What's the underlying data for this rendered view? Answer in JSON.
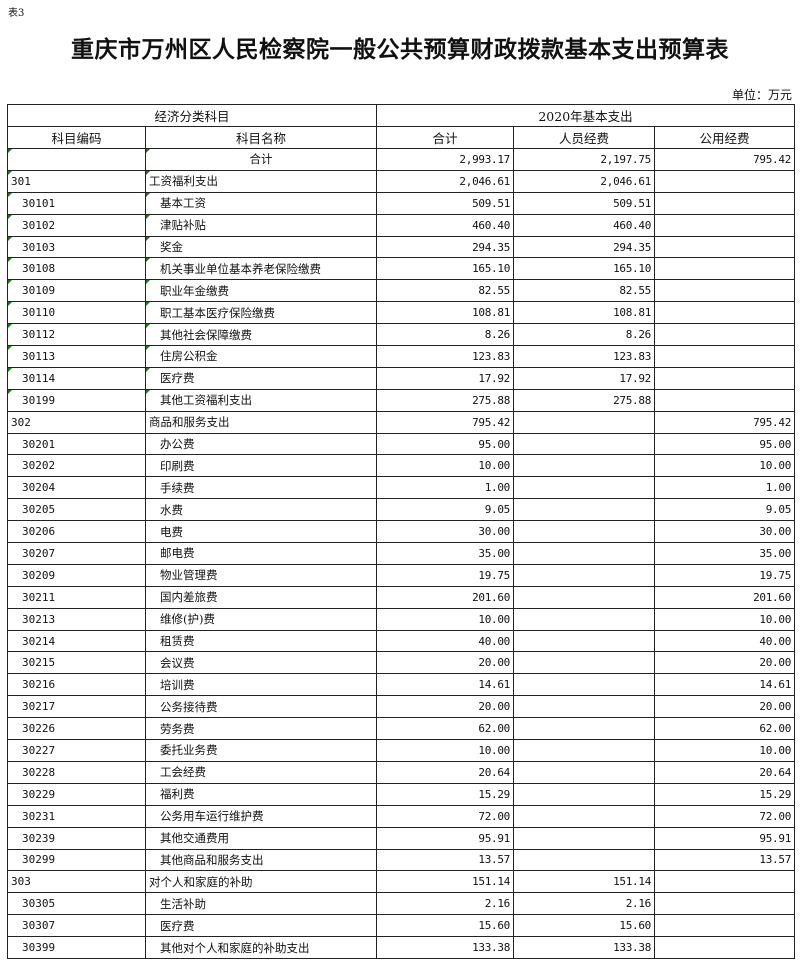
{
  "doc": {
    "tag": "表3",
    "title": "重庆市万州区人民检察院一般公共预算财政拨款基本支出预算表",
    "unit": "单位：万元"
  },
  "header": {
    "group_left": "经济分类科目",
    "group_right": "2020年基本支出",
    "code": "科目编码",
    "name": "科目名称",
    "total": "合计",
    "personnel": "人员经费",
    "public": "公用经费"
  },
  "rows": [
    {
      "code": "",
      "name": "合计",
      "total": "2,993.17",
      "personnel": "2,197.75",
      "public": "795.42",
      "level": 0,
      "mark": true
    },
    {
      "code": "301",
      "name": "工资福利支出",
      "total": "2,046.61",
      "personnel": "2,046.61",
      "public": "",
      "level": 1,
      "mark": true
    },
    {
      "code": "30101",
      "name": "基本工资",
      "total": "509.51",
      "personnel": "509.51",
      "public": "",
      "level": 2,
      "mark": true
    },
    {
      "code": "30102",
      "name": "津贴补贴",
      "total": "460.40",
      "personnel": "460.40",
      "public": "",
      "level": 2,
      "mark": true
    },
    {
      "code": "30103",
      "name": "奖金",
      "total": "294.35",
      "personnel": "294.35",
      "public": "",
      "level": 2,
      "mark": true
    },
    {
      "code": "30108",
      "name": "机关事业单位基本养老保险缴费",
      "total": "165.10",
      "personnel": "165.10",
      "public": "",
      "level": 2,
      "mark": true
    },
    {
      "code": "30109",
      "name": "职业年金缴费",
      "total": "82.55",
      "personnel": "82.55",
      "public": "",
      "level": 2,
      "mark": true
    },
    {
      "code": "30110",
      "name": "职工基本医疗保险缴费",
      "total": "108.81",
      "personnel": "108.81",
      "public": "",
      "level": 2,
      "mark": true
    },
    {
      "code": "30112",
      "name": "其他社会保障缴费",
      "total": "8.26",
      "personnel": "8.26",
      "public": "",
      "level": 2,
      "mark": true
    },
    {
      "code": "30113",
      "name": "住房公积金",
      "total": "123.83",
      "personnel": "123.83",
      "public": "",
      "level": 2,
      "mark": true
    },
    {
      "code": "30114",
      "name": "医疗费",
      "total": "17.92",
      "personnel": "17.92",
      "public": "",
      "level": 2,
      "mark": true
    },
    {
      "code": "30199",
      "name": "其他工资福利支出",
      "total": "275.88",
      "personnel": "275.88",
      "public": "",
      "level": 2,
      "mark": true
    },
    {
      "code": "302",
      "name": "商品和服务支出",
      "total": "795.42",
      "personnel": "",
      "public": "795.42",
      "level": 1
    },
    {
      "code": "30201",
      "name": "办公费",
      "total": "95.00",
      "personnel": "",
      "public": "95.00",
      "level": 2
    },
    {
      "code": "30202",
      "name": "印刷费",
      "total": "10.00",
      "personnel": "",
      "public": "10.00",
      "level": 2
    },
    {
      "code": "30204",
      "name": "手续费",
      "total": "1.00",
      "personnel": "",
      "public": "1.00",
      "level": 2
    },
    {
      "code": "30205",
      "name": "水费",
      "total": "9.05",
      "personnel": "",
      "public": "9.05",
      "level": 2
    },
    {
      "code": "30206",
      "name": "电费",
      "total": "30.00",
      "personnel": "",
      "public": "30.00",
      "level": 2
    },
    {
      "code": "30207",
      "name": "邮电费",
      "total": "35.00",
      "personnel": "",
      "public": "35.00",
      "level": 2
    },
    {
      "code": "30209",
      "name": "物业管理费",
      "total": "19.75",
      "personnel": "",
      "public": "19.75",
      "level": 2
    },
    {
      "code": "30211",
      "name": "国内差旅费",
      "total": "201.60",
      "personnel": "",
      "public": "201.60",
      "level": 2
    },
    {
      "code": "30213",
      "name": "维修(护)费",
      "total": "10.00",
      "personnel": "",
      "public": "10.00",
      "level": 2
    },
    {
      "code": "30214",
      "name": "租赁费",
      "total": "40.00",
      "personnel": "",
      "public": "40.00",
      "level": 2
    },
    {
      "code": "30215",
      "name": "会议费",
      "total": "20.00",
      "personnel": "",
      "public": "20.00",
      "level": 2
    },
    {
      "code": "30216",
      "name": "培训费",
      "total": "14.61",
      "personnel": "",
      "public": "14.61",
      "level": 2
    },
    {
      "code": "30217",
      "name": "公务接待费",
      "total": "20.00",
      "personnel": "",
      "public": "20.00",
      "level": 2
    },
    {
      "code": "30226",
      "name": "劳务费",
      "total": "62.00",
      "personnel": "",
      "public": "62.00",
      "level": 2
    },
    {
      "code": "30227",
      "name": "委托业务费",
      "total": "10.00",
      "personnel": "",
      "public": "10.00",
      "level": 2
    },
    {
      "code": "30228",
      "name": "工会经费",
      "total": "20.64",
      "personnel": "",
      "public": "20.64",
      "level": 2
    },
    {
      "code": "30229",
      "name": "福利费",
      "total": "15.29",
      "personnel": "",
      "public": "15.29",
      "level": 2
    },
    {
      "code": "30231",
      "name": "公务用车运行维护费",
      "total": "72.00",
      "personnel": "",
      "public": "72.00",
      "level": 2
    },
    {
      "code": "30239",
      "name": "其他交通费用",
      "total": "95.91",
      "personnel": "",
      "public": "95.91",
      "level": 2
    },
    {
      "code": "30299",
      "name": "其他商品和服务支出",
      "total": "13.57",
      "personnel": "",
      "public": "13.57",
      "level": 2
    },
    {
      "code": "303",
      "name": "对个人和家庭的补助",
      "total": "151.14",
      "personnel": "151.14",
      "public": "",
      "level": 1
    },
    {
      "code": "30305",
      "name": "生活补助",
      "total": "2.16",
      "personnel": "2.16",
      "public": "",
      "level": 2
    },
    {
      "code": "30307",
      "name": "医疗费",
      "total": "15.60",
      "personnel": "15.60",
      "public": "",
      "level": 2
    },
    {
      "code": "30399",
      "name": "其他对个人和家庭的补助支出",
      "total": "133.38",
      "personnel": "133.38",
      "public": "",
      "level": 2
    }
  ]
}
